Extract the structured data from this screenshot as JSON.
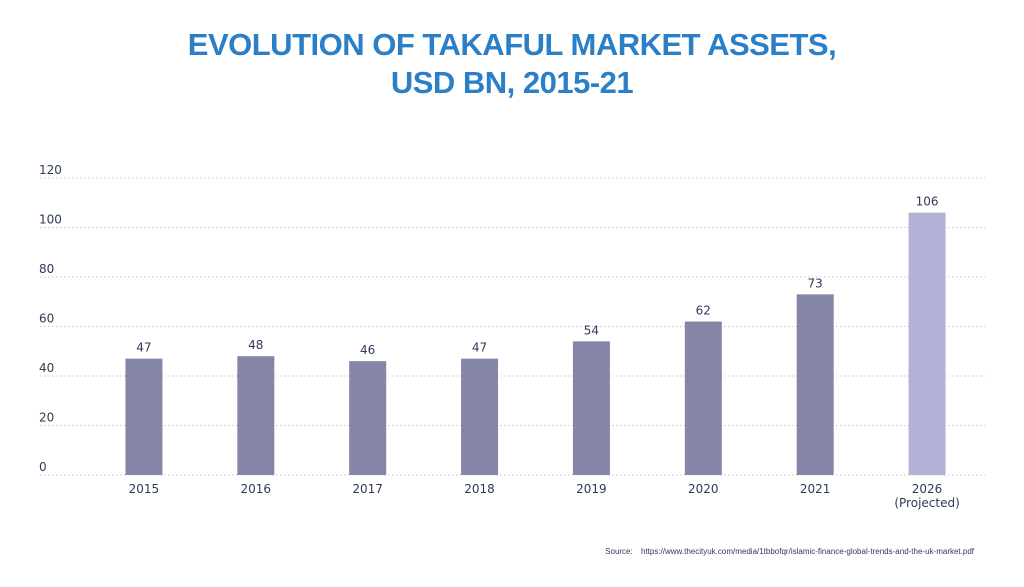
{
  "chart_data": {
    "type": "bar",
    "title_lines": [
      "EVOLUTION OF TAKAFUL MARKET ASSETS,",
      "USD BN, 2015-21"
    ],
    "categories": [
      [
        "2015"
      ],
      [
        "2016"
      ],
      [
        "2017"
      ],
      [
        "2018"
      ],
      [
        "2019"
      ],
      [
        "2020"
      ],
      [
        "2021"
      ],
      [
        "2026",
        "(Projected)"
      ]
    ],
    "values": [
      47,
      48,
      46,
      47,
      54,
      62,
      73,
      106
    ],
    "data_labels": [
      "47",
      "48",
      "46",
      "47",
      "54",
      "62",
      "73",
      "106"
    ],
    "projected": [
      false,
      false,
      false,
      false,
      false,
      false,
      false,
      true
    ],
    "ylim": [
      0,
      120
    ],
    "yticks": [
      "0",
      "20",
      "40",
      "60",
      "80",
      "100",
      "120"
    ],
    "ytick_values": [
      0,
      20,
      40,
      60,
      80,
      100,
      120
    ],
    "grid": true,
    "xlabel": "",
    "ylabel": "",
    "colors": {
      "bar": "#8585a8",
      "bar_projected": "#b2b2d6",
      "title": "#2a7fc6",
      "text": "#2e3a59",
      "grid": "#c8c8c8"
    }
  },
  "source": {
    "label": "Source:",
    "url": "https://www.thecityuk.com/media/1tbbofqr/islamic-finance-global-trends-and-the-uk-market.pdf"
  }
}
